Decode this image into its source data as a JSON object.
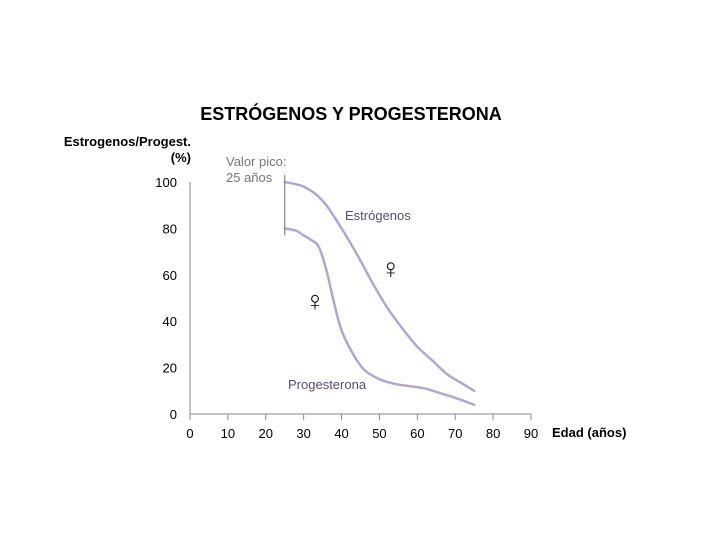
{
  "chart_data": {
    "type": "line",
    "title": "ESTRÓGENOS Y PROGESTERONA",
    "xlabel": "Edad (años)",
    "ylabel_line1": "Estrogenos/Progest.",
    "ylabel_line2": "(%)",
    "xlim": [
      0,
      90
    ],
    "ylim": [
      0,
      100
    ],
    "x_ticks": [
      0,
      10,
      20,
      30,
      40,
      50,
      60,
      70,
      80,
      90
    ],
    "y_ticks": [
      0,
      20,
      40,
      60,
      80,
      100
    ],
    "grid": false,
    "colors": {
      "series": "#b3a6cc",
      "labels": "#5a4a78",
      "axis": "#888888",
      "text": "#000000",
      "note": "#777777"
    },
    "series": [
      {
        "name": "Estrógenos",
        "x": [
          25,
          28,
          30,
          33,
          36,
          40,
          44,
          48,
          52,
          56,
          60,
          64,
          68,
          72,
          75
        ],
        "y": [
          100,
          99,
          98,
          95,
          90,
          80,
          69,
          57,
          46,
          37,
          29,
          23,
          17,
          13,
          10
        ]
      },
      {
        "name": "Progesterona",
        "x": [
          25,
          28,
          30,
          32,
          34,
          36,
          38,
          40,
          43,
          46,
          50,
          54,
          58,
          62,
          66,
          70,
          75
        ],
        "y": [
          80,
          79,
          77,
          75,
          72,
          62,
          48,
          36,
          26,
          19,
          15,
          13,
          12,
          11,
          9,
          7,
          4
        ]
      }
    ],
    "annotations": {
      "peak_line1": "Valor pico:",
      "peak_line2": "25 años",
      "peak_x": 25,
      "peak_range": [
        77,
        103
      ],
      "female_symbol": "♀",
      "female_symbol_positions": [
        [
          53,
          63
        ],
        [
          33,
          49
        ]
      ]
    }
  }
}
